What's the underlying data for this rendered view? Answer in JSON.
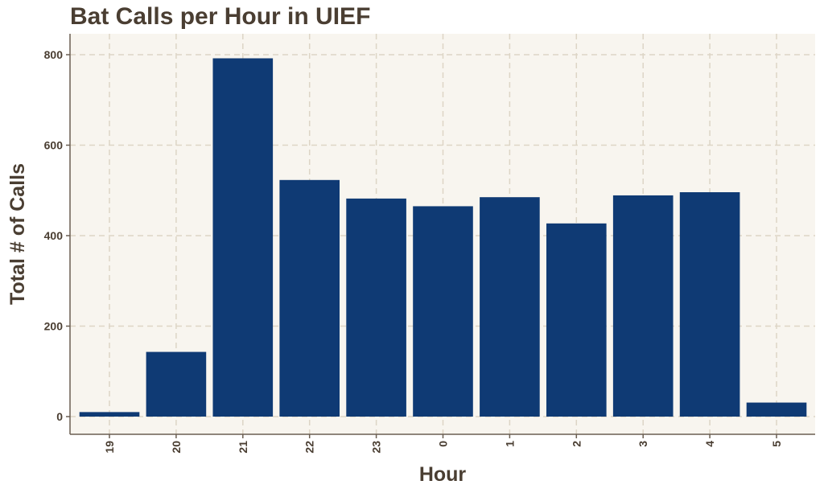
{
  "chart_data": {
    "type": "bar",
    "title": "Bat Calls per Hour in UIEF",
    "xlabel": "Hour",
    "ylabel": "Total # of Calls",
    "categories": [
      "19",
      "20",
      "21",
      "22",
      "23",
      "0",
      "1",
      "2",
      "3",
      "4",
      "5"
    ],
    "values": [
      10,
      143,
      792,
      523,
      482,
      465,
      485,
      427,
      489,
      496,
      31
    ],
    "ylim": [
      0,
      800
    ],
    "yticks": [
      0,
      200,
      400,
      600,
      800
    ],
    "grid": true,
    "legend": "none",
    "colors": {
      "bar": "#0f3a74",
      "panel": "#f8f5ef",
      "grid": "#ddd5c6",
      "axis": "#6b5f52",
      "text": "#4a3e32"
    }
  }
}
